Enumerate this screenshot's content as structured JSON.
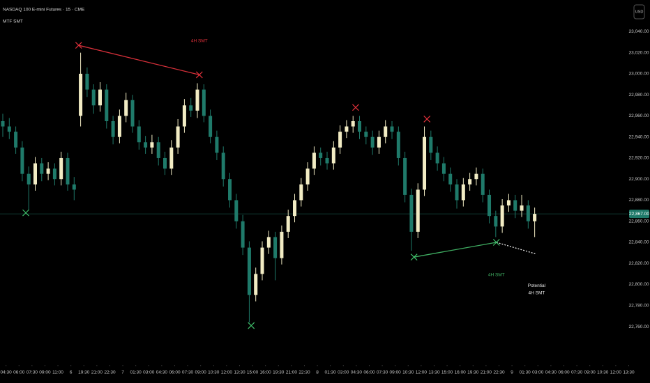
{
  "chart_data": {
    "type": "candlestick",
    "title": "NASDAQ 100 E-mini Futures · 15 · CME",
    "subtitle": "MTF SMT",
    "currency": "USD",
    "up_color": "#f2ecc4",
    "down_color": "#1f7a6a",
    "ylim": [
      22725,
      23070
    ],
    "xlim": [
      -0.43,
      96.34
    ],
    "yticks": [
      {
        "value": 22760,
        "label": "22,760.00"
      },
      {
        "value": 22780,
        "label": "22,780.00"
      },
      {
        "value": 22800,
        "label": "22,800.00"
      },
      {
        "value": 22820,
        "label": "22,820.00"
      },
      {
        "value": 22840,
        "label": "22,840.00"
      },
      {
        "value": 22860,
        "label": "22,860.00"
      },
      {
        "value": 22880,
        "label": "22,880.00"
      },
      {
        "value": 22900,
        "label": "22,900.00"
      },
      {
        "value": 22920,
        "label": "22,920.00"
      },
      {
        "value": 22940,
        "label": "22,940.00"
      },
      {
        "value": 22960,
        "label": "22,960.00"
      },
      {
        "value": 22980,
        "label": "22,980.00"
      },
      {
        "value": 23000,
        "label": "23,000.00"
      },
      {
        "value": 23020,
        "label": "23,020.00"
      },
      {
        "value": 23040,
        "label": "23,040.00"
      }
    ],
    "xticks": [
      {
        "value": 0.5,
        "label": "04:30"
      },
      {
        "value": 2.5,
        "label": "06:00"
      },
      {
        "value": 4.5,
        "label": "07:30"
      },
      {
        "value": 6.5,
        "label": "09:00"
      },
      {
        "value": 8.5,
        "label": "11:00"
      },
      {
        "value": 10.5,
        "label": "6"
      },
      {
        "value": 12.5,
        "label": "19:30"
      },
      {
        "value": 14.5,
        "label": "21:00"
      },
      {
        "value": 16.5,
        "label": "22:30"
      },
      {
        "value": 18.5,
        "label": "7"
      },
      {
        "value": 20.5,
        "label": "01:30"
      },
      {
        "value": 22.5,
        "label": "03:00"
      },
      {
        "value": 24.5,
        "label": "04:30"
      },
      {
        "value": 26.5,
        "label": "06:00"
      },
      {
        "value": 28.5,
        "label": "07:30"
      },
      {
        "value": 30.5,
        "label": "09:00"
      },
      {
        "value": 32.5,
        "label": "10:30"
      },
      {
        "value": 34.5,
        "label": "12:00"
      },
      {
        "value": 36.5,
        "label": "13:30"
      },
      {
        "value": 38.5,
        "label": "15:00"
      },
      {
        "value": 40.5,
        "label": "16:00"
      },
      {
        "value": 42.5,
        "label": "19:30"
      },
      {
        "value": 44.5,
        "label": "21:00"
      },
      {
        "value": 46.5,
        "label": "22:30"
      },
      {
        "value": 48.5,
        "label": "8"
      },
      {
        "value": 50.5,
        "label": "01:30"
      },
      {
        "value": 52.5,
        "label": "03:00"
      },
      {
        "value": 54.5,
        "label": "04:30"
      },
      {
        "value": 56.5,
        "label": "06:00"
      },
      {
        "value": 58.5,
        "label": "07:30"
      },
      {
        "value": 60.5,
        "label": "09:00"
      },
      {
        "value": 62.5,
        "label": "10:30"
      },
      {
        "value": 64.5,
        "label": "12:00"
      },
      {
        "value": 66.5,
        "label": "13:30"
      },
      {
        "value": 68.5,
        "label": "15:00"
      },
      {
        "value": 70.5,
        "label": "16:00"
      },
      {
        "value": 72.5,
        "label": "19:30"
      },
      {
        "value": 74.5,
        "label": "21:00"
      },
      {
        "value": 76.5,
        "label": "22:30"
      },
      {
        "value": 78.5,
        "label": "9"
      },
      {
        "value": 80.5,
        "label": "01:30"
      },
      {
        "value": 82.5,
        "label": "03:00"
      },
      {
        "value": 84.5,
        "label": "04:30"
      },
      {
        "value": 86.5,
        "label": "06:00"
      },
      {
        "value": 88.5,
        "label": "07:30"
      },
      {
        "value": 90.5,
        "label": "09:00"
      },
      {
        "value": 92.5,
        "label": "10:30"
      },
      {
        "value": 94.5,
        "label": "12:00"
      },
      {
        "value": 96.5,
        "label": "13:30"
      }
    ],
    "current_price": {
      "value": 22867,
      "label": "22,867.00",
      "color": "#1f7a6a"
    },
    "candles": [
      [
        22955,
        22962,
        22940,
        22950
      ],
      [
        22950,
        22958,
        22938,
        22945
      ],
      [
        22945,
        22950,
        22924,
        22930
      ],
      [
        22930,
        22936,
        22898,
        22905
      ],
      [
        22905,
        22912,
        22871,
        22895
      ],
      [
        22895,
        22921,
        22889,
        22915
      ],
      [
        22915,
        22920,
        22898,
        22905
      ],
      [
        22905,
        22916,
        22899,
        22910
      ],
      [
        22910,
        22915,
        22894,
        22900
      ],
      [
        22900,
        22926,
        22894,
        22920
      ],
      [
        22920,
        22925,
        22889,
        22895
      ],
      [
        22895,
        22902,
        22880,
        22890
      ],
      [
        22960,
        23020,
        22950,
        23000
      ],
      [
        23000,
        23006,
        22978,
        22985
      ],
      [
        22985,
        22990,
        22962,
        22970
      ],
      [
        22970,
        22992,
        22964,
        22985
      ],
      [
        22985,
        22990,
        22948,
        22955
      ],
      [
        22955,
        22960,
        22933,
        22940
      ],
      [
        22940,
        22966,
        22934,
        22960
      ],
      [
        22960,
        22982,
        22954,
        22975
      ],
      [
        22975,
        22980,
        22944,
        22950
      ],
      [
        22950,
        22956,
        22928,
        22935
      ],
      [
        22935,
        22941,
        22924,
        22930
      ],
      [
        22930,
        22942,
        22924,
        22935
      ],
      [
        22935,
        22940,
        22913,
        22920
      ],
      [
        22920,
        22926,
        22904,
        22910
      ],
      [
        22910,
        22937,
        22904,
        22930
      ],
      [
        22930,
        22957,
        22924,
        22950
      ],
      [
        22950,
        22976,
        22944,
        22970
      ],
      [
        22970,
        22977,
        22959,
        22965
      ],
      [
        22965,
        22991,
        22958,
        22985
      ],
      [
        22985,
        22990,
        22954,
        22960
      ],
      [
        22960,
        22966,
        22934,
        22940
      ],
      [
        22940,
        22946,
        22918,
        22925
      ],
      [
        22925,
        22931,
        22893,
        22900
      ],
      [
        22900,
        22906,
        22873,
        22880
      ],
      [
        22880,
        22886,
        22853,
        22860
      ],
      [
        22860,
        22866,
        22828,
        22835
      ],
      [
        22835,
        22841,
        22764,
        22790
      ],
      [
        22790,
        22816,
        22784,
        22810
      ],
      [
        22810,
        22841,
        22804,
        22835
      ],
      [
        22835,
        22851,
        22829,
        22845
      ],
      [
        22845,
        22850,
        22804,
        22825
      ],
      [
        22825,
        22856,
        22819,
        22850
      ],
      [
        22850,
        22871,
        22844,
        22865
      ],
      [
        22865,
        22886,
        22859,
        22880
      ],
      [
        22880,
        22901,
        22874,
        22895
      ],
      [
        22895,
        22916,
        22889,
        22910
      ],
      [
        22910,
        22931,
        22904,
        22925
      ],
      [
        22925,
        22930,
        22913,
        22920
      ],
      [
        22920,
        22926,
        22909,
        22915
      ],
      [
        22915,
        22936,
        22909,
        22930
      ],
      [
        22930,
        22951,
        22924,
        22945
      ],
      [
        22945,
        22956,
        22939,
        22950
      ],
      [
        22950,
        22960,
        22944,
        22955
      ],
      [
        22955,
        22960,
        22938,
        22945
      ],
      [
        22945,
        22950,
        22933,
        22940
      ],
      [
        22940,
        22946,
        22923,
        22930
      ],
      [
        22930,
        22946,
        22924,
        22940
      ],
      [
        22940,
        22956,
        22934,
        22950
      ],
      [
        22950,
        22955,
        22938,
        22945
      ],
      [
        22945,
        22950,
        22913,
        22920
      ],
      [
        22920,
        22926,
        22878,
        22885
      ],
      [
        22885,
        22891,
        22832,
        22850
      ],
      [
        22850,
        22896,
        22844,
        22890
      ],
      [
        22890,
        22950,
        22884,
        22940
      ],
      [
        22940,
        22946,
        22918,
        22925
      ],
      [
        22925,
        22931,
        22908,
        22915
      ],
      [
        22915,
        22921,
        22898,
        22905
      ],
      [
        22905,
        22911,
        22888,
        22895
      ],
      [
        22895,
        22900,
        22872,
        22880
      ],
      [
        22880,
        22901,
        22874,
        22895
      ],
      [
        22895,
        22906,
        22889,
        22900
      ],
      [
        22900,
        22911,
        22894,
        22905
      ],
      [
        22905,
        22910,
        22878,
        22885
      ],
      [
        22885,
        22890,
        22858,
        22865
      ],
      [
        22865,
        22870,
        22845,
        22855
      ],
      [
        22855,
        22881,
        22849,
        22875
      ],
      [
        22875,
        22886,
        22869,
        22880
      ],
      [
        22880,
        22885,
        22863,
        22870
      ],
      [
        22870,
        22885,
        22864,
        22875
      ],
      [
        22875,
        22880,
        22853,
        22860
      ],
      [
        22860,
        22873,
        22845,
        22867
      ]
    ],
    "markers": [
      {
        "x": 3.55,
        "y": 22868,
        "color": "#3fbf6a"
      },
      {
        "x": 11.7,
        "y": 23027,
        "color": "#e0303a"
      },
      {
        "x": 30.3,
        "y": 22999,
        "color": "#e0303a"
      },
      {
        "x": 38.3,
        "y": 22761,
        "color": "#3fbf6a"
      },
      {
        "x": 54.4,
        "y": 22968,
        "color": "#e0303a"
      },
      {
        "x": 63.4,
        "y": 22826,
        "color": "#3fbf6a"
      },
      {
        "x": 65.4,
        "y": 22957,
        "color": "#e0303a"
      },
      {
        "x": 76.1,
        "y": 22840,
        "color": "#3fbf6a"
      }
    ],
    "lines": [
      {
        "x": [
          11.7,
          30.3
        ],
        "y": [
          23027,
          22999
        ],
        "color": "#d8303a",
        "dash": false
      },
      {
        "x": [
          63.4,
          76.1
        ],
        "y": [
          22826,
          22840
        ],
        "color": "#3fae62",
        "dash": false
      },
      {
        "x": [
          76.1,
          82.2
        ],
        "y": [
          22840,
          22829
        ],
        "color": "#e8e8e8",
        "dash": true
      }
    ],
    "annotations": [
      {
        "text": "4H SMT",
        "x": 30.3,
        "y": 23031,
        "color": "#e0303a"
      },
      {
        "text": "4H SMT",
        "x": 76.1,
        "y": 22809,
        "color": "#3fae62"
      },
      {
        "text": "Potential",
        "x": 82.3,
        "y": 22799,
        "color": "#e8e8e8"
      },
      {
        "text": "4H SMT",
        "x": 82.3,
        "y": 22792,
        "color": "#e8e8e8"
      }
    ]
  }
}
